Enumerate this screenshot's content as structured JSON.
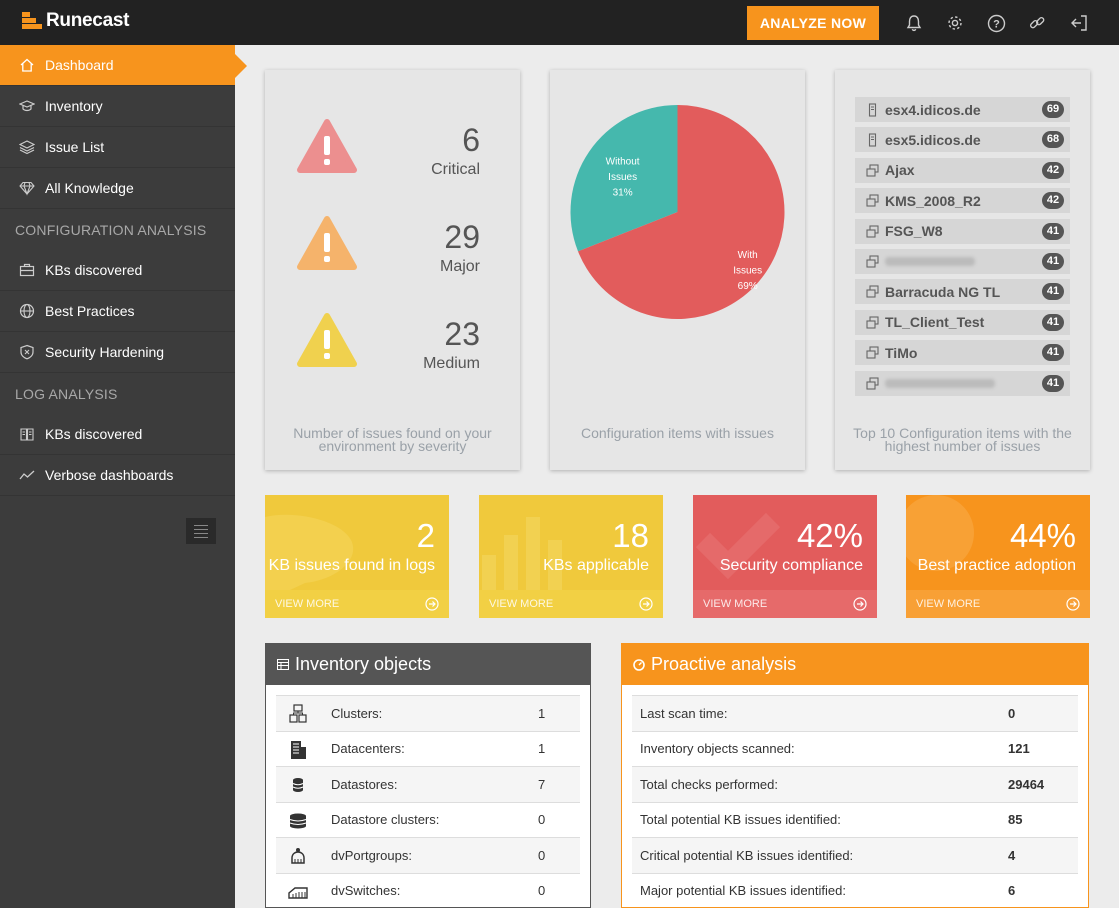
{
  "app": {
    "logo_text": "Runecast",
    "brand_color": "#f7941d"
  },
  "topbar": {
    "analyze_button": "ANALYZE NOW",
    "icons": [
      "bell-icon",
      "gear-icon",
      "help-icon",
      "link-icon",
      "logout-icon"
    ]
  },
  "sidebar": {
    "items": [
      {
        "label": "Dashboard",
        "icon": "home-icon",
        "active": true
      },
      {
        "label": "Inventory",
        "icon": "graduation-cap-icon"
      },
      {
        "label": "Issue List",
        "icon": "layers-icon"
      },
      {
        "label": "All Knowledge",
        "icon": "diamond-icon"
      }
    ],
    "config_section": "CONFIGURATION ANALYSIS",
    "config_items": [
      {
        "label": "KBs discovered",
        "icon": "briefcase-icon"
      },
      {
        "label": "Best Practices",
        "icon": "globe-icon"
      },
      {
        "label": "Security Hardening",
        "icon": "shield-icon"
      }
    ],
    "log_section": "LOG ANALYSIS",
    "log_items": [
      {
        "label": "KBs discovered",
        "icon": "book-icon"
      },
      {
        "label": "Verbose dashboards",
        "icon": "line-chart-icon"
      }
    ]
  },
  "severity": {
    "critical": {
      "count": "6",
      "label": "Critical",
      "color": "#ec8f8f"
    },
    "major": {
      "count": "29",
      "label": "Major",
      "color": "#f5b36b"
    },
    "medium": {
      "count": "23",
      "label": "Medium",
      "color": "#f0d14e"
    },
    "caption": "Number of issues found on your environment by severity"
  },
  "chart_data": {
    "type": "pie",
    "title": "",
    "slices": [
      {
        "name": "Without Issues",
        "value": 31,
        "color": "#45b8ad",
        "line1": "Without",
        "line2": "Issues",
        "pct": "31%"
      },
      {
        "name": "With Issues",
        "value": 69,
        "color": "#e25c5c",
        "line1": "With",
        "line2": "Issues",
        "pct": "69%"
      }
    ],
    "caption": "Configuration items with issues"
  },
  "top10": {
    "caption": "Top 10 Configuration items with the highest number of issues",
    "items": [
      {
        "name": "esx4.idicos.de",
        "count": "69",
        "icon": "server-icon"
      },
      {
        "name": "esx5.idicos.de",
        "count": "68",
        "icon": "server-icon"
      },
      {
        "name": "Ajax",
        "count": "42",
        "icon": "vm-icon"
      },
      {
        "name": "KMS_2008_R2",
        "count": "42",
        "icon": "vm-icon"
      },
      {
        "name": "FSG_W8",
        "count": "41",
        "icon": "vm-icon"
      },
      {
        "name": "",
        "count": "41",
        "icon": "vm-icon",
        "redacted": true
      },
      {
        "name": "Barracuda NG TL",
        "count": "41",
        "icon": "vm-icon"
      },
      {
        "name": "TL_Client_Test",
        "count": "41",
        "icon": "vm-icon"
      },
      {
        "name": "TiMo",
        "count": "41",
        "icon": "vm-icon"
      },
      {
        "name": "",
        "count": "41",
        "icon": "vm-icon",
        "redacted": true
      }
    ]
  },
  "tiles": [
    {
      "value": "2",
      "label": "KB issues found in logs",
      "link": "VIEW MORE",
      "color": "#f0c93c",
      "foot_color": "#f2d044",
      "bg_icon": "chat-icon"
    },
    {
      "value": "18",
      "label": "KBs applicable",
      "link": "VIEW MORE",
      "color": "#f0c93c",
      "foot_color": "#f2d044",
      "bg_icon": "bar-chart-icon"
    },
    {
      "value": "42%",
      "label": "Security compliance",
      "link": "VIEW MORE",
      "color": "#e25c5c",
      "foot_color": "#e66a6a",
      "bg_icon": "check-icon"
    },
    {
      "value": "44%",
      "label": "Best practice adoption",
      "link": "VIEW MORE",
      "color": "#f7941d",
      "foot_color": "#f8a035",
      "bg_icon": "globe-icon"
    }
  ],
  "inventory_panel": {
    "title": "Inventory objects",
    "rows": [
      {
        "label": "Clusters:",
        "value": "1",
        "icon": "cluster-icon"
      },
      {
        "label": "Datacenters:",
        "value": "1",
        "icon": "building-icon"
      },
      {
        "label": "Datastores:",
        "value": "7",
        "icon": "database-icon"
      },
      {
        "label": "Datastore clusters:",
        "value": "0",
        "icon": "database-cluster-icon"
      },
      {
        "label": "dvPortgroups:",
        "value": "0",
        "icon": "portgroup-icon"
      },
      {
        "label": "dvSwitches:",
        "value": "0",
        "icon": "switch-icon"
      }
    ]
  },
  "proactive_panel": {
    "title": "Proactive analysis",
    "rows": [
      {
        "label": "Last scan time:",
        "value": "0"
      },
      {
        "label": "Inventory objects scanned:",
        "value": "121"
      },
      {
        "label": "Total checks performed:",
        "value": "29464"
      },
      {
        "label": "Total potential KB issues identified:",
        "value": "85"
      },
      {
        "label": "Critical potential KB issues identified:",
        "value": "4"
      },
      {
        "label": "Major potential KB issues identified:",
        "value": "6"
      }
    ]
  }
}
